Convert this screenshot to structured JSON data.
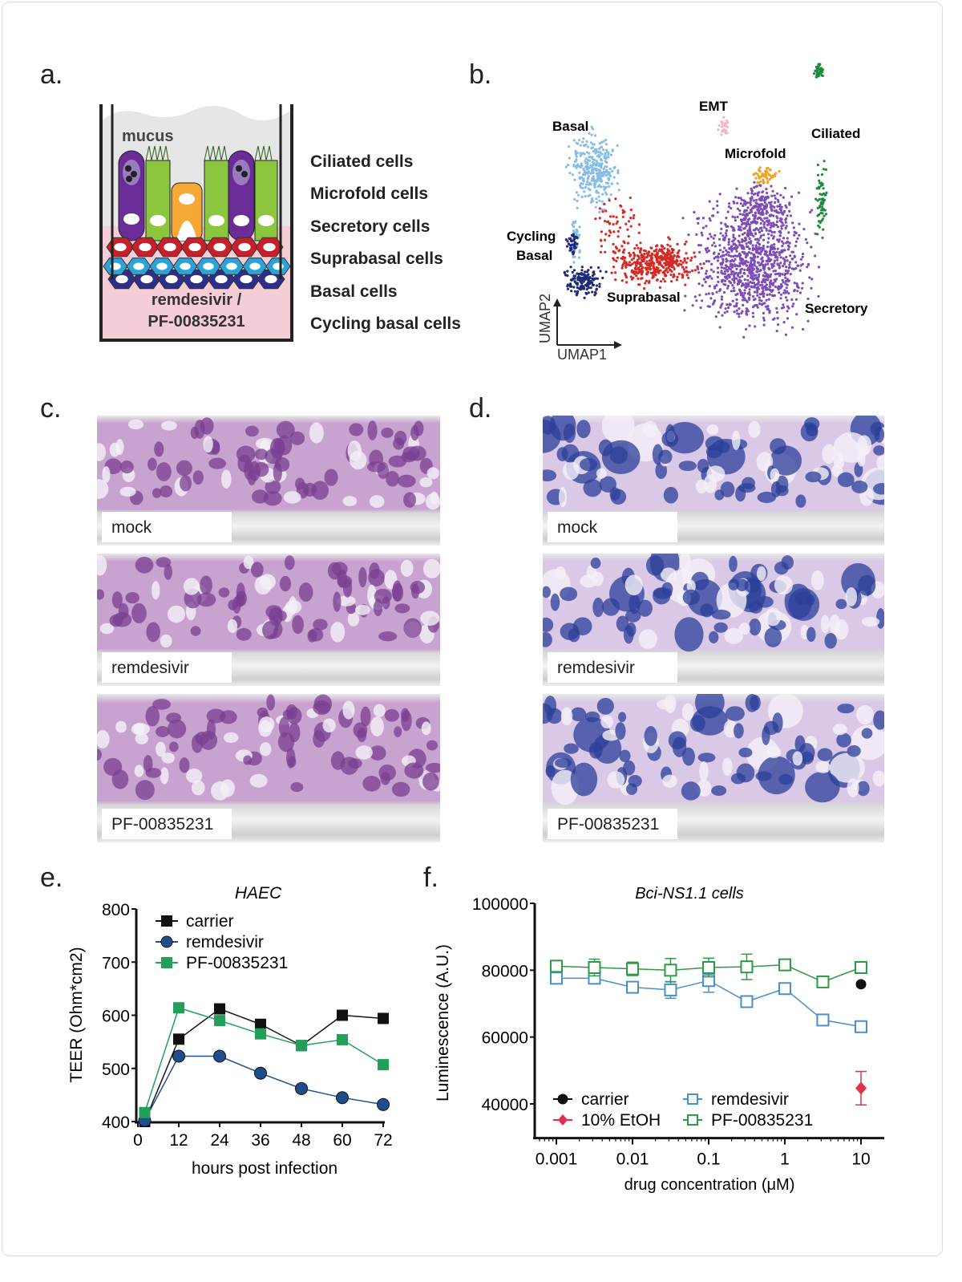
{
  "panels": {
    "a": "a.",
    "b": "b.",
    "c": "c.",
    "d": "d.",
    "e": "e.",
    "f": "f."
  },
  "panel_a": {
    "mucus_label": "mucus",
    "medium_label_1": "remdesivir /",
    "medium_label_2": "PF-00835231",
    "legend": [
      {
        "label": "Ciliated cells",
        "color": "#2e9e4a"
      },
      {
        "label": "Microfold cells",
        "color": "#f5a833"
      },
      {
        "label": "Secretory cells",
        "color": "#6a2c96"
      },
      {
        "label": "Suprabasal cells",
        "color": "#c8202b"
      },
      {
        "label": "Basal cells",
        "color": "#2aa3d8"
      },
      {
        "label": "Cycling basal cells",
        "color": "#2b2f8a"
      }
    ]
  },
  "panel_b": {
    "clusters": [
      {
        "label": "Basal",
        "color": "#86bde6"
      },
      {
        "label": "Cycling\nBasal",
        "label_1": "Cycling",
        "label_2": "Basal",
        "color": "#1e2a7a"
      },
      {
        "label": "Suprabasal",
        "color": "#d42a25"
      },
      {
        "label": "Secretory",
        "color": "#7e4cb8"
      },
      {
        "label": "Microfold",
        "color": "#f0a423"
      },
      {
        "label": "EMT",
        "color": "#f3b5cb"
      },
      {
        "label": "Ciliated",
        "color": "#1e8a3c"
      }
    ],
    "axis_x": "UMAP1",
    "axis_y": "UMAP2"
  },
  "panel_c": {
    "labels": [
      "mock",
      "remdesivir",
      "PF-00835231"
    ]
  },
  "panel_d": {
    "labels": [
      "mock",
      "remdesivir",
      "PF-00835231"
    ]
  },
  "chart_data": [
    {
      "type": "line",
      "title": "HAEC",
      "xlabel": "hours post infection",
      "ylabel": "TEER (Ohm*cm2)",
      "xlim": [
        0,
        72
      ],
      "ylim": [
        400,
        800
      ],
      "xticks": [
        0,
        12,
        24,
        36,
        48,
        60,
        72
      ],
      "yticks": [
        400,
        500,
        600,
        700,
        800
      ],
      "legend": "top-left",
      "series": [
        {
          "name": "carrier",
          "marker": "square",
          "color": "#111111",
          "x": [
            2,
            12,
            24,
            36,
            48,
            60,
            72
          ],
          "y": [
            400,
            555,
            612,
            583,
            543,
            600,
            594
          ]
        },
        {
          "name": "remdesivir",
          "marker": "circle",
          "color": "#1f4e8c",
          "x": [
            2,
            12,
            24,
            36,
            48,
            60,
            72
          ],
          "y": [
            402,
            523,
            523,
            491,
            462,
            445,
            432
          ]
        },
        {
          "name": "PF-00835231",
          "marker": "square",
          "color": "#22a05a",
          "x": [
            2,
            12,
            24,
            36,
            48,
            60,
            72
          ],
          "y": [
            417,
            614,
            590,
            565,
            543,
            554,
            507
          ]
        }
      ]
    },
    {
      "type": "line",
      "title": "Bci-NS1.1 cells",
      "xlabel": "drug concentration (μM)",
      "ylabel": "Luminescence (A.U.)",
      "xscale": "log",
      "xlim": [
        0.0007,
        14
      ],
      "ylim": [
        30000,
        100000
      ],
      "xticks": [
        0.001,
        0.01,
        0.1,
        1,
        10
      ],
      "xtick_labels": [
        "0.001",
        "0.01",
        "0.1",
        "1",
        "10"
      ],
      "yticks": [
        40000,
        60000,
        80000,
        100000
      ],
      "legend": "bottom-left",
      "series": [
        {
          "name": "remdesivir",
          "marker": "open-square",
          "color": "#4a90c8",
          "x": [
            0.001,
            0.00316,
            0.01,
            0.0316,
            0.1,
            0.316,
            1,
            3.16,
            10
          ],
          "y": [
            77600,
            77600,
            74900,
            74100,
            76900,
            70600,
            74500,
            65100,
            63100
          ],
          "err": [
            1200,
            800,
            800,
            2500,
            3500,
            800,
            800,
            800,
            800
          ]
        },
        {
          "name": "PF-00835231",
          "marker": "open-square",
          "color": "#2f9a45",
          "x": [
            0.001,
            0.00316,
            0.01,
            0.0316,
            0.1,
            0.316,
            1,
            3.16,
            10
          ],
          "y": [
            81200,
            80800,
            80400,
            80000,
            80800,
            81000,
            81600,
            76500,
            80800
          ],
          "err": [
            800,
            2500,
            2000,
            3500,
            2800,
            3800,
            800,
            1000,
            800
          ]
        },
        {
          "name": "carrier",
          "marker": "circle",
          "color": "#111111",
          "x": [
            10
          ],
          "y": [
            75800
          ],
          "err": [
            0
          ]
        },
        {
          "name": "10% EtOH",
          "marker": "diamond",
          "color": "#e0304a",
          "x": [
            10
          ],
          "y": [
            44700
          ],
          "err": [
            5000
          ]
        }
      ]
    }
  ]
}
